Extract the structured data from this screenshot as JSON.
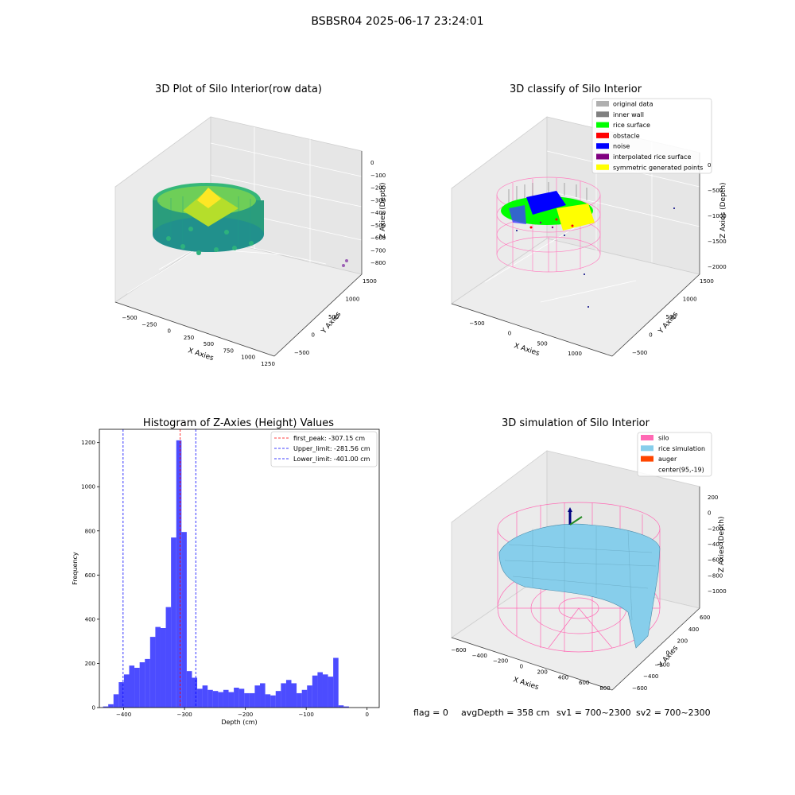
{
  "figure": {
    "suptitle": "BSBSR04 2025-06-17 23:24:01",
    "status": {
      "flag": "flag = 0",
      "avg": "avgDepth = 358 cm",
      "sv1": "sv1 = 700~2300",
      "sv2": "sv2 = 700~2300"
    }
  },
  "panel1": {
    "title": "3D Plot of Silo Interior(row data)",
    "xlabel": "X Axies",
    "ylabel": "Y Axies",
    "zlabel": "Z Axies (Depth)",
    "xticks": [
      "−500",
      "−250",
      "0",
      "250",
      "500",
      "750",
      "1000",
      "1250"
    ],
    "yticks": [
      "−500",
      "0",
      "500",
      "1000",
      "1500"
    ],
    "zticks": [
      "0",
      "−100",
      "−200",
      "−300",
      "−400",
      "−500",
      "−600",
      "−700",
      "−800"
    ],
    "colormap": [
      "#440154",
      "#31688e",
      "#21908c",
      "#35b779",
      "#fde725"
    ]
  },
  "panel2": {
    "title": "3D classify of Silo Interior",
    "xlabel": "X Axies",
    "ylabel": "Y Axies",
    "zlabel": "Z Axies (Depth)",
    "xticks": [
      "−500",
      "0",
      "500",
      "1000"
    ],
    "yticks": [
      "−500",
      "0",
      "500",
      "1000",
      "1500"
    ],
    "zticks": [
      "0",
      "−500",
      "−1000",
      "−1500",
      "−2000"
    ],
    "legend": [
      {
        "label": "original data",
        "color": "#b0b0b0"
      },
      {
        "label": "inner wall",
        "color": "#808080"
      },
      {
        "label": "rice surface",
        "color": "#00ff00"
      },
      {
        "label": "obstacle",
        "color": "#ff0000"
      },
      {
        "label": "noise",
        "color": "#0000ff"
      },
      {
        "label": "interpolated rice surface",
        "color": "#800080"
      },
      {
        "label": "symmetric generated points",
        "color": "#ffff00"
      }
    ]
  },
  "panel4": {
    "title": "3D simulation of Silo Interior",
    "xlabel": "X Axies",
    "ylabel": "Y Axies",
    "zlabel": "Z Axies (Depth)",
    "xticks": [
      "−600",
      "−400",
      "−200",
      "0",
      "200",
      "400",
      "600",
      "800"
    ],
    "yticks": [
      "−600",
      "−400",
      "−200",
      "0",
      "200",
      "400",
      "600"
    ],
    "zticks": [
      "200",
      "0",
      "−200",
      "−400",
      "−600",
      "−800",
      "−1000"
    ],
    "legend": [
      {
        "label": "silo",
        "color": "#ff69b4"
      },
      {
        "label": "rice simulation",
        "color": "#87ceeb"
      },
      {
        "label": "auger",
        "color": "#ff4500"
      },
      {
        "label": "center(95,-19)",
        "color": "none"
      }
    ]
  },
  "chart_data": {
    "type": "bar",
    "title": "Histogram of Z-Axies (Height) Values",
    "xlabel": "Depth (cm)",
    "ylabel": "Frequency",
    "xlim": [
      -440,
      20
    ],
    "ylim": [
      0,
      1260
    ],
    "xticks": [
      -400,
      -300,
      -200,
      -100,
      0
    ],
    "yticks": [
      0,
      200,
      400,
      600,
      800,
      1000,
      1200
    ],
    "bar_color": "#0000ff",
    "bin_start": -434,
    "bin_width": 8.6,
    "values": [
      5,
      15,
      60,
      115,
      150,
      190,
      180,
      205,
      220,
      320,
      365,
      360,
      455,
      770,
      1210,
      795,
      165,
      135,
      85,
      100,
      80,
      75,
      70,
      80,
      70,
      90,
      85,
      65,
      65,
      100,
      110,
      60,
      55,
      75,
      110,
      125,
      110,
      65,
      80,
      100,
      145,
      160,
      150,
      140,
      225,
      10,
      5
    ],
    "lines": [
      {
        "label": "first_peak: -307.15 cm",
        "x": -307.15,
        "color": "#ff0000"
      },
      {
        "label": "Upper_limit: -281.56 cm",
        "x": -281.56,
        "color": "#0000ff"
      },
      {
        "label": "Lower_limit: -401.00 cm",
        "x": -401.0,
        "color": "#0000ff"
      }
    ],
    "legend_position": "top-right",
    "grid": false
  }
}
